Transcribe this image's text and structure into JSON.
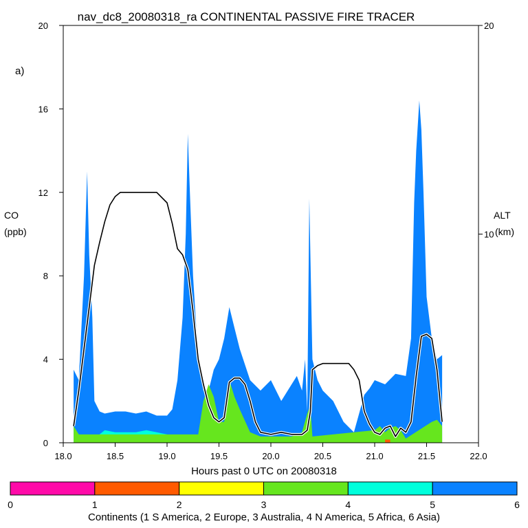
{
  "chart_data": {
    "type": "area",
    "title": "nav_dc8_20080318_ra CONTINENTAL PASSIVE FIRE TRACER",
    "panel_label": "a)",
    "xlabel": "Hours past 0 UTC on 20080318",
    "ylabel_left": "CO",
    "ylabel_left_unit": "(ppb)",
    "ylabel_right": "ALT",
    "ylabel_right_unit": "(km)",
    "xlim": [
      18.0,
      22.0
    ],
    "ylim_left": [
      0,
      20
    ],
    "ylim_right": [
      0,
      20
    ],
    "x_ticks": [
      "18.0",
      "18.5",
      "19.0",
      "19.5",
      "20.0",
      "20.5",
      "21.0",
      "21.5",
      "22.0"
    ],
    "y_ticks_left": [
      "0",
      "4",
      "8",
      "12",
      "16",
      "20"
    ],
    "y_ticks_right": [
      "10",
      "20"
    ],
    "colorbar": {
      "ticks": [
        "0",
        "1",
        "2",
        "3",
        "4",
        "5",
        "6"
      ],
      "colors": [
        "#ff0aa8",
        "#ff5a00",
        "#ffff00",
        "#66e61e",
        "#00ffdc",
        "#0a82ff"
      ],
      "label": "Continents (1 S America, 2 Europe, 3 Australia, 4 N America, 5 Africa, 6 Asia)"
    },
    "colors": {
      "asia": "#0a82ff",
      "africa": "#00ffdc",
      "n_america": "#66e61e",
      "europe": "#ff5a00",
      "altitude": "#000000"
    },
    "series": [
      {
        "name": "Asia (6) stacked top",
        "x": [
          18.1,
          18.15,
          18.2,
          18.23,
          18.25,
          18.28,
          18.3,
          18.35,
          18.4,
          18.5,
          18.6,
          18.7,
          18.8,
          18.9,
          19.0,
          19.05,
          19.1,
          19.15,
          19.18,
          19.2,
          19.22,
          19.25,
          19.3,
          19.35,
          19.4,
          19.45,
          19.5,
          19.55,
          19.6,
          19.65,
          19.7,
          19.8,
          19.9,
          20.0,
          20.1,
          20.2,
          20.25,
          20.3,
          20.33,
          20.35,
          20.37,
          20.4,
          20.45,
          20.5,
          20.6,
          20.7,
          20.8,
          20.9,
          20.95,
          21.0,
          21.1,
          21.2,
          21.3,
          21.35,
          21.38,
          21.4,
          21.43,
          21.45,
          21.47,
          21.5,
          21.55,
          21.6,
          21.65
        ],
        "values": [
          3.5,
          3.0,
          8.0,
          13.0,
          9.0,
          6.0,
          2.0,
          1.5,
          1.4,
          1.5,
          1.5,
          1.4,
          1.5,
          1.3,
          1.3,
          1.6,
          3.0,
          6.0,
          10.0,
          14.8,
          12.0,
          8.0,
          4.0,
          2.5,
          2.5,
          3.5,
          4.0,
          5.0,
          6.5,
          5.5,
          4.5,
          3.0,
          2.5,
          3.0,
          2.0,
          2.8,
          3.2,
          2.5,
          4.0,
          1.5,
          11.7,
          4.0,
          3.0,
          2.5,
          2.0,
          1.0,
          0.5,
          2.3,
          2.6,
          3.0,
          2.8,
          3.3,
          3.2,
          5.0,
          11.5,
          14.0,
          16.4,
          15.0,
          12.0,
          7.0,
          5.0,
          4.0,
          4.2
        ]
      },
      {
        "name": "Africa (5) stacked top",
        "x": [
          18.1,
          18.2,
          18.3,
          18.4,
          18.5,
          18.6,
          18.7,
          18.8,
          18.9,
          19.0,
          19.1,
          19.2
        ],
        "values": [
          0.1,
          0.1,
          0.2,
          0.6,
          0.5,
          0.5,
          0.5,
          0.6,
          0.5,
          0.4,
          0.2,
          0.1
        ]
      },
      {
        "name": "N America (4)",
        "x": [
          18.1,
          18.15,
          19.3,
          19.35,
          19.4,
          19.45,
          19.5,
          19.55,
          19.6,
          19.65,
          19.7,
          19.8,
          19.9,
          20.0,
          20.2,
          20.3,
          20.35,
          20.38,
          20.4,
          21.0,
          21.05,
          21.1,
          21.15,
          21.2,
          21.25,
          21.3,
          21.55,
          21.6,
          21.65
        ],
        "values": [
          0.8,
          0.4,
          0.4,
          2.0,
          2.8,
          2.2,
          1.0,
          1.0,
          3.0,
          2.2,
          1.6,
          0.5,
          0.3,
          0.3,
          0.3,
          0.5,
          1.4,
          1.8,
          0.3,
          0.6,
          0.8,
          0.5,
          0.7,
          0.8,
          0.6,
          0.2,
          1.0,
          1.1,
          0.8
        ]
      },
      {
        "name": "Europe (2)",
        "x": [
          21.1,
          21.15
        ],
        "values": [
          0.15,
          0.15
        ]
      },
      {
        "name": "Altitude (km)",
        "axis": "right",
        "x": [
          18.1,
          18.15,
          18.2,
          18.25,
          18.3,
          18.35,
          18.4,
          18.45,
          18.5,
          18.55,
          18.6,
          18.7,
          18.8,
          18.9,
          19.0,
          19.05,
          19.1,
          19.15,
          19.2,
          19.25,
          19.3,
          19.35,
          19.4,
          19.45,
          19.5,
          19.55,
          19.6,
          19.65,
          19.7,
          19.75,
          19.8,
          19.85,
          19.9,
          20.0,
          20.1,
          20.2,
          20.3,
          20.35,
          20.38,
          20.4,
          20.45,
          20.5,
          20.6,
          20.7,
          20.75,
          20.8,
          20.85,
          20.9,
          20.95,
          21.0,
          21.05,
          21.1,
          21.15,
          21.2,
          21.25,
          21.3,
          21.35,
          21.4,
          21.45,
          21.5,
          21.55,
          21.6,
          21.65
        ],
        "values": [
          0.8,
          2.5,
          4.5,
          6.5,
          8.5,
          9.6,
          10.6,
          11.4,
          11.8,
          12.0,
          12.0,
          12.0,
          12.0,
          12.0,
          11.5,
          10.5,
          9.3,
          9.0,
          8.3,
          6.3,
          4.0,
          2.8,
          1.8,
          1.2,
          1.0,
          1.2,
          2.9,
          3.1,
          3.1,
          2.8,
          2.0,
          1.0,
          0.5,
          0.4,
          0.5,
          0.4,
          0.4,
          0.6,
          1.5,
          3.5,
          3.7,
          3.8,
          3.8,
          3.8,
          3.8,
          3.5,
          3.0,
          1.5,
          0.9,
          0.5,
          0.4,
          0.7,
          0.8,
          0.3,
          0.7,
          0.5,
          1.0,
          3.2,
          5.1,
          5.2,
          5.0,
          3.5,
          1.0
        ]
      }
    ]
  }
}
